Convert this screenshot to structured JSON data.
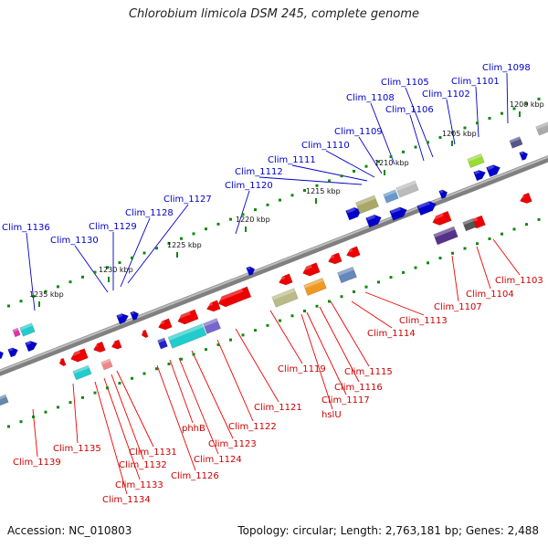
{
  "title": "Chlorobium limicola DSM 245, complete genome",
  "footer": {
    "accession": "Accession: NC_010803",
    "stats": "Topology: circular; Length: 2,763,181 bp; Genes: 2,488"
  },
  "kbp_ticks": [
    "1200 kbp",
    "1205 kbp",
    "1210 kbp",
    "1215 kbp",
    "1220 kbp",
    "1225 kbp",
    "1230 kbp",
    "1235 kbp"
  ],
  "genes_forward": [
    "Clim_1098",
    "Clim_1101",
    "Clim_1102",
    "Clim_1105",
    "Clim_1106",
    "Clim_1108",
    "Clim_1109",
    "Clim_1110",
    "Clim_1111",
    "Clim_1112",
    "Clim_1120",
    "Clim_1127",
    "Clim_1128",
    "Clim_1129",
    "Clim_1130",
    "Clim_1136"
  ],
  "genes_reverse": [
    "Clim_1103",
    "Clim_1104",
    "Clim_1107",
    "Clim_1113",
    "Clim_1114",
    "Clim_1115",
    "Clim_1116",
    "Clim_1117",
    "hslU",
    "Clim_1119",
    "Clim_1121",
    "Clim_1122",
    "Clim_1123",
    "Clim_1124",
    "phhB",
    "Clim_1126",
    "Clim_1131",
    "Clim_1132",
    "Clim_1133",
    "Clim_1134",
    "Clim_1135",
    "Clim_1139"
  ],
  "colors": {
    "forward": "#0000cc",
    "reverse": "#ee0000",
    "tick": "#118811",
    "backbone": "#888888"
  }
}
